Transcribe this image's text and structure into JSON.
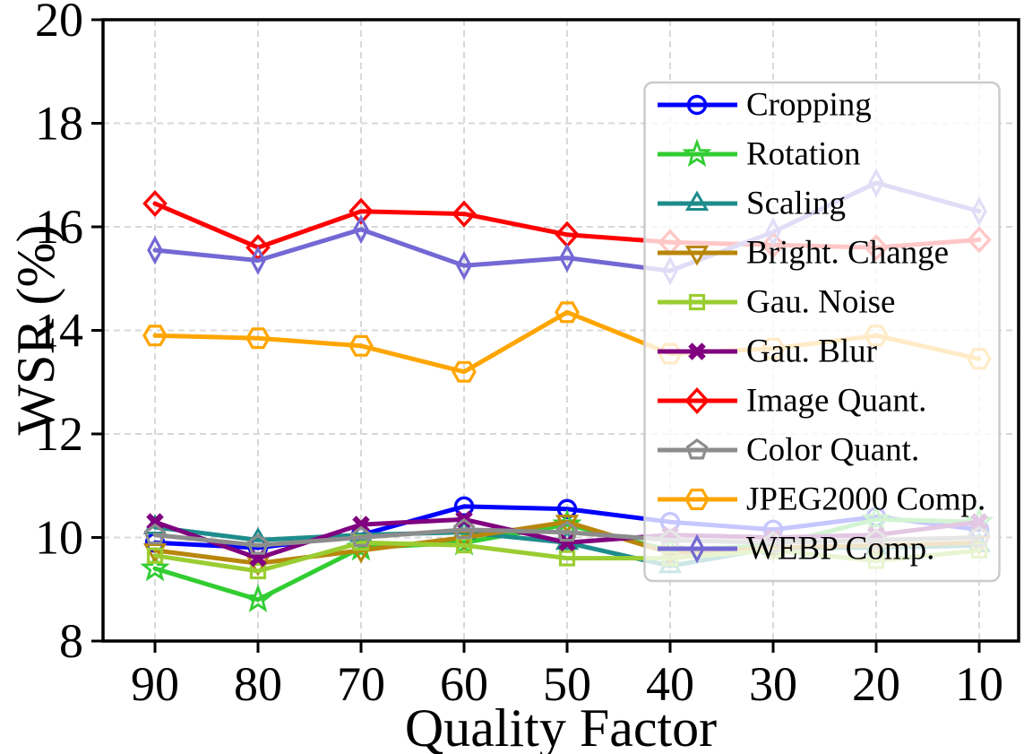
{
  "figure": {
    "type_note": "matplotlib-style line chart",
    "background": "#ffffff",
    "grid_color": "#d8d8d8",
    "spine_color": "#000000",
    "legend_border_color": "#cbcbcb",
    "legend_fill_alpha": 0.78
  },
  "chart_data": {
    "type": "line",
    "title": "",
    "xlabel": "Quality Factor",
    "ylabel": "WSR (%)",
    "x": [
      90,
      80,
      70,
      60,
      50,
      40,
      30,
      20,
      10
    ],
    "x_tick_labels": [
      "90",
      "80",
      "70",
      "60",
      "50",
      "40",
      "30",
      "20",
      "10"
    ],
    "y_ticks": [
      20,
      18,
      16,
      14,
      12,
      10,
      8
    ],
    "y_tick_labels": [
      "20",
      "18",
      "16",
      "14",
      "12",
      "10",
      "8"
    ],
    "ylim": [
      8,
      20
    ],
    "grid": true,
    "grid_style": "dashed",
    "legend_position": "upper right",
    "series": [
      {
        "name": "Cropping",
        "color": "#0000FF",
        "marker": "circle",
        "values": [
          9.9,
          9.8,
          10.05,
          10.6,
          10.55,
          10.3,
          10.15,
          10.4,
          10.15
        ]
      },
      {
        "name": "Rotation",
        "color": "#32CD32",
        "marker": "star",
        "values": [
          9.4,
          8.8,
          9.8,
          9.9,
          10.25,
          9.75,
          9.85,
          10.35,
          10.3
        ]
      },
      {
        "name": "Scaling",
        "color": "#1E8C8C",
        "marker": "triangle-up",
        "values": [
          10.2,
          9.95,
          10.05,
          10.1,
          9.9,
          9.45,
          9.8,
          9.8,
          9.85
        ]
      },
      {
        "name": "Bright. Change",
        "color": "#B8860B",
        "marker": "triangle-down",
        "values": [
          9.75,
          9.5,
          9.75,
          10.0,
          10.3,
          9.7,
          9.8,
          9.85,
          9.9
        ]
      },
      {
        "name": "Gau. Noise",
        "color": "#9ACD32",
        "marker": "square",
        "values": [
          9.65,
          9.35,
          9.9,
          9.85,
          9.6,
          9.6,
          9.75,
          9.55,
          9.75
        ]
      },
      {
        "name": "Gau. Blur",
        "color": "#800080",
        "marker": "x-filled",
        "values": [
          10.3,
          9.6,
          10.25,
          10.35,
          9.9,
          10.05,
          10.0,
          10.05,
          10.3
        ]
      },
      {
        "name": "Image Quant.",
        "color": "#FF0000",
        "marker": "diamond",
        "values": [
          16.45,
          15.6,
          16.3,
          16.25,
          15.85,
          15.7,
          15.65,
          15.6,
          15.75
        ]
      },
      {
        "name": "Color Quant.",
        "color": "#8C8C8C",
        "marker": "pentagon",
        "values": [
          10.05,
          9.85,
          10.0,
          10.15,
          10.1,
          9.95,
          9.9,
          9.95,
          10.0
        ]
      },
      {
        "name": "JPEG2000 Comp.",
        "color": "#FFA500",
        "marker": "hexagon",
        "values": [
          13.9,
          13.85,
          13.7,
          13.2,
          14.35,
          13.55,
          13.65,
          13.9,
          13.45
        ]
      },
      {
        "name": "WEBP Comp.",
        "color": "#7468D4",
        "marker": "thin-diamond",
        "values": [
          15.55,
          15.35,
          15.95,
          15.25,
          15.4,
          15.15,
          15.9,
          16.85,
          16.3
        ]
      }
    ]
  }
}
